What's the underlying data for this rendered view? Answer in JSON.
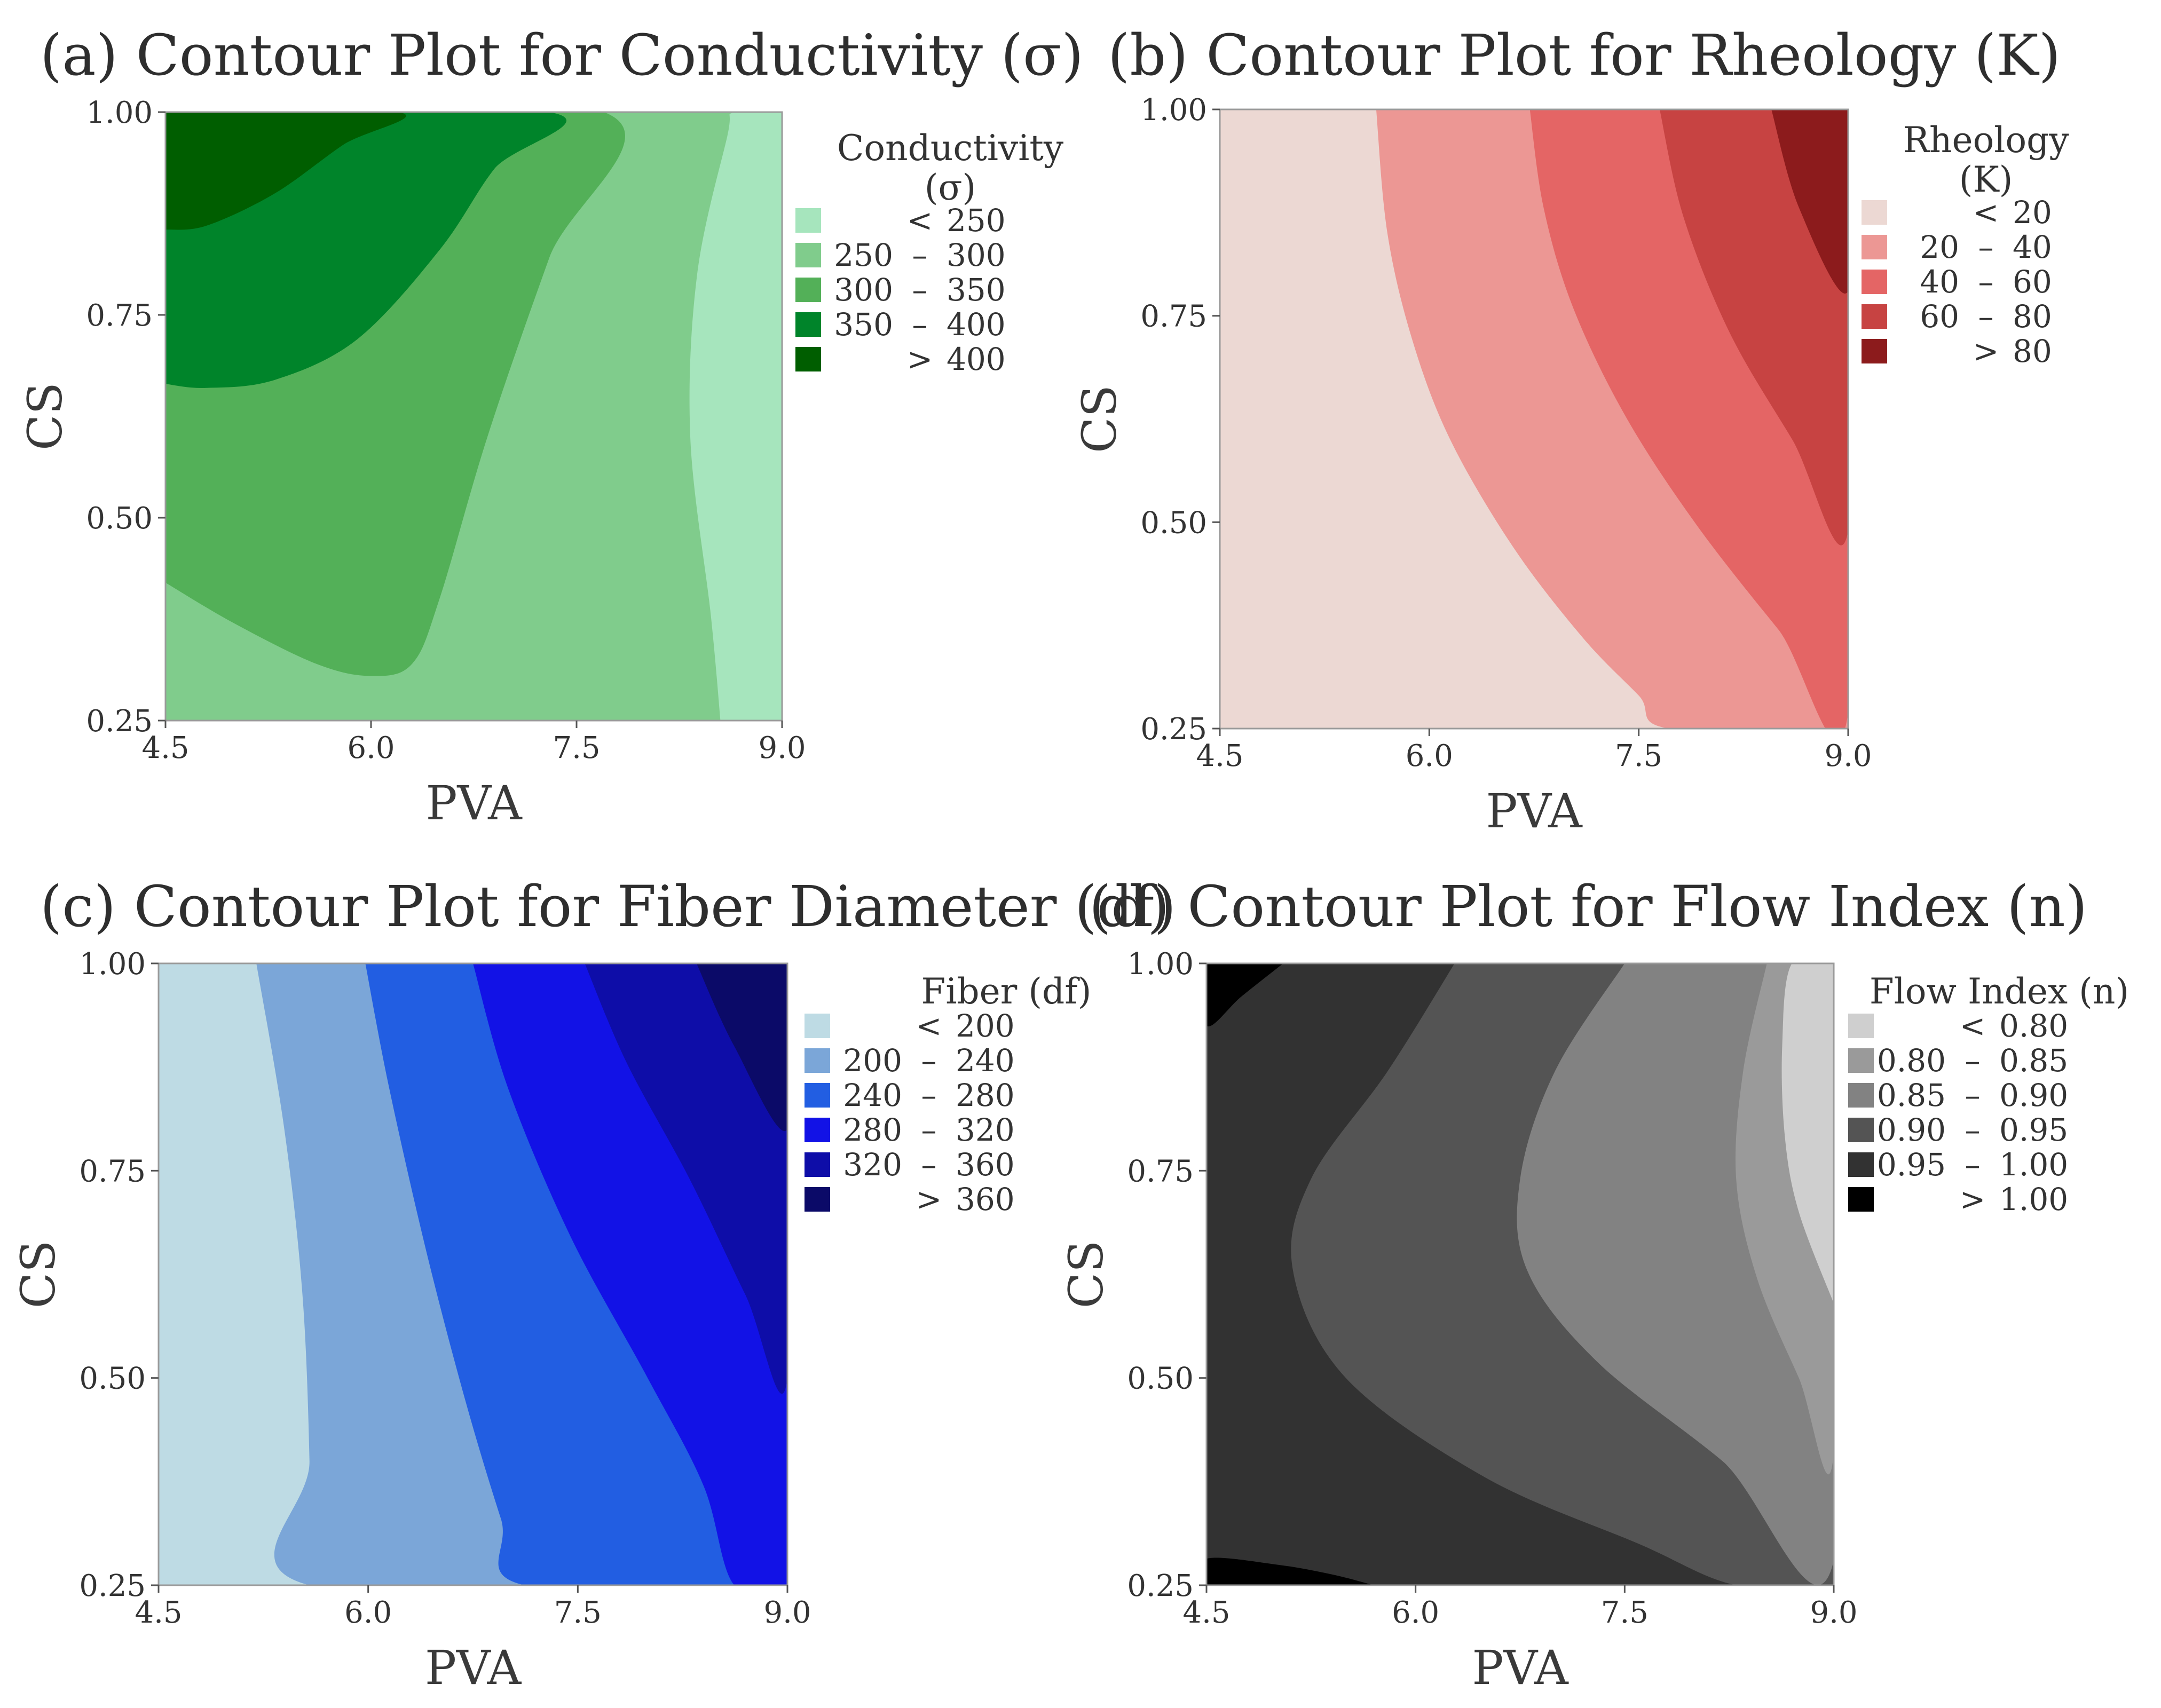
{
  "chart_data": [
    {
      "type": "contour",
      "id": "a",
      "title": "(a) Contour Plot for Conductivity (σ)",
      "xlabel": "PVA",
      "ylabel": "CS",
      "xlim": [
        4.5,
        9.0
      ],
      "ylim": [
        0.25,
        1.0
      ],
      "x_ticks": [
        "4.5",
        "6.0",
        "7.5",
        "9.0"
      ],
      "y_ticks": [
        "0.25",
        "0.50",
        "0.75",
        "1.00"
      ],
      "legend_title": [
        "Conductivity",
        "(σ)"
      ],
      "levels": [
        {
          "low": "",
          "sep": "<",
          "high": "250",
          "color": "#a6e5bd"
        },
        {
          "low": "250",
          "sep": "–",
          "high": "300",
          "color": "#80cc8c"
        },
        {
          "low": "300",
          "sep": "–",
          "high": "350",
          "color": "#53b058"
        },
        {
          "low": "350",
          "sep": "–",
          "high": "400",
          "color": "#00842a"
        },
        {
          "low": "",
          "sep": ">",
          "high": "400",
          "color": "#005e00"
        }
      ],
      "regions": [
        {
          "level": 1,
          "boundary": [
            [
              4.5,
              0.25
            ],
            [
              4.5,
              1.0
            ],
            [
              9.0,
              1.0
            ],
            [
              9.0,
              0.25
            ]
          ]
        },
        {
          "level": 0,
          "boundary": [
            [
              8.55,
              0.25
            ],
            [
              8.48,
              0.38
            ],
            [
              8.33,
              0.6
            ],
            [
              8.38,
              0.8
            ],
            [
              8.6,
              0.97
            ],
            [
              8.65,
              1.0
            ],
            [
              9.0,
              1.0
            ],
            [
              9.0,
              0.25
            ]
          ]
        },
        {
          "level": 2,
          "boundary": [
            [
              4.5,
              0.42
            ],
            [
              5.0,
              0.37
            ],
            [
              5.6,
              0.32
            ],
            [
              6.0,
              0.305
            ],
            [
              6.3,
              0.32
            ],
            [
              6.5,
              0.4
            ],
            [
              6.85,
              0.6
            ],
            [
              7.3,
              0.82
            ],
            [
              7.7,
              1.0
            ],
            [
              4.5,
              1.0
            ]
          ]
        },
        {
          "level": 3,
          "boundary": [
            [
              4.5,
              0.665
            ],
            [
              4.8,
              0.66
            ],
            [
              5.3,
              0.67
            ],
            [
              5.9,
              0.72
            ],
            [
              6.5,
              0.83
            ],
            [
              6.9,
              0.93
            ],
            [
              7.3,
              1.0
            ],
            [
              4.5,
              1.0
            ]
          ]
        },
        {
          "level": 4,
          "boundary": [
            [
              4.5,
              0.855
            ],
            [
              4.8,
              0.86
            ],
            [
              5.3,
              0.9
            ],
            [
              5.8,
              0.96
            ],
            [
              6.2,
              1.0
            ],
            [
              4.5,
              1.0
            ]
          ]
        }
      ]
    },
    {
      "type": "contour",
      "id": "b",
      "title": "(b) Contour Plot for Rheology (K)",
      "xlabel": "PVA",
      "ylabel": "CS",
      "xlim": [
        4.5,
        9.0
      ],
      "ylim": [
        0.25,
        1.0
      ],
      "x_ticks": [
        "4.5",
        "6.0",
        "7.5",
        "9.0"
      ],
      "y_ticks": [
        "0.25",
        "0.50",
        "0.75",
        "1.00"
      ],
      "legend_title": [
        "Rheology",
        "(K)"
      ],
      "levels": [
        {
          "low": "",
          "sep": "<",
          "high": "20",
          "color": "#ecd8d3"
        },
        {
          "low": "20",
          "sep": "–",
          "high": "40",
          "color": "#ec9794"
        },
        {
          "low": "40",
          "sep": "–",
          "high": "60",
          "color": "#e46565"
        },
        {
          "low": "60",
          "sep": "–",
          "high": "80",
          "color": "#c74342"
        },
        {
          "low": "",
          "sep": ">",
          "high": "80",
          "color": "#8c1b1c"
        }
      ],
      "regions": [
        {
          "level": 0,
          "boundary": [
            [
              4.5,
              0.25
            ],
            [
              4.5,
              1.0
            ],
            [
              9.0,
              1.0
            ],
            [
              9.0,
              0.25
            ]
          ]
        },
        {
          "level": 1,
          "boundary": [
            [
              5.62,
              1.0
            ],
            [
              5.7,
              0.85
            ],
            [
              5.88,
              0.72
            ],
            [
              6.15,
              0.6
            ],
            [
              6.6,
              0.47
            ],
            [
              7.1,
              0.36
            ],
            [
              7.5,
              0.29
            ],
            [
              7.72,
              0.25
            ],
            [
              9.0,
              0.25
            ],
            [
              9.0,
              1.0
            ]
          ]
        },
        {
          "level": 2,
          "boundary": [
            [
              6.72,
              1.0
            ],
            [
              6.82,
              0.88
            ],
            [
              7.03,
              0.76
            ],
            [
              7.4,
              0.63
            ],
            [
              7.9,
              0.5
            ],
            [
              8.5,
              0.37
            ],
            [
              9.0,
              0.27
            ],
            [
              9.0,
              1.0
            ]
          ]
        },
        {
          "level": 3,
          "boundary": [
            [
              7.65,
              1.0
            ],
            [
              7.82,
              0.87
            ],
            [
              8.15,
              0.73
            ],
            [
              8.6,
              0.6
            ],
            [
              9.0,
              0.49
            ],
            [
              9.0,
              1.0
            ]
          ]
        },
        {
          "level": 4,
          "boundary": [
            [
              8.45,
              1.0
            ],
            [
              8.65,
              0.88
            ],
            [
              9.0,
              0.78
            ],
            [
              9.0,
              1.0
            ]
          ]
        }
      ]
    },
    {
      "type": "contour",
      "id": "c",
      "title": "(c) Contour Plot for Fiber Diameter (df)",
      "xlabel": "PVA",
      "ylabel": "CS",
      "xlim": [
        4.5,
        9.0
      ],
      "ylim": [
        0.25,
        1.0
      ],
      "x_ticks": [
        "4.5",
        "6.0",
        "7.5",
        "9.0"
      ],
      "y_ticks": [
        "0.25",
        "0.50",
        "0.75",
        "1.00"
      ],
      "legend_title": [
        "Fiber (df)"
      ],
      "levels": [
        {
          "low": "",
          "sep": "<",
          "high": "200",
          "color": "#bedbe4"
        },
        {
          "low": "200",
          "sep": "–",
          "high": "240",
          "color": "#7ba6d8"
        },
        {
          "low": "240",
          "sep": "–",
          "high": "280",
          "color": "#225ee2"
        },
        {
          "low": "280",
          "sep": "–",
          "high": "320",
          "color": "#1212e6"
        },
        {
          "low": "320",
          "sep": "–",
          "high": "360",
          "color": "#0e0da8"
        },
        {
          "low": "",
          "sep": ">",
          "high": "360",
          "color": "#0b0a68"
        }
      ],
      "regions": [
        {
          "level": 0,
          "boundary": [
            [
              4.5,
              0.25
            ],
            [
              4.5,
              1.0
            ],
            [
              9.0,
              1.0
            ],
            [
              9.0,
              0.25
            ]
          ]
        },
        {
          "level": 1,
          "boundary": [
            [
              5.2,
              1.0
            ],
            [
              5.4,
              0.8
            ],
            [
              5.53,
              0.6
            ],
            [
              5.58,
              0.4
            ],
            [
              5.58,
              0.25
            ],
            [
              9.0,
              0.25
            ],
            [
              9.0,
              1.0
            ]
          ]
        },
        {
          "level": 2,
          "boundary": [
            [
              5.98,
              1.0
            ],
            [
              6.15,
              0.85
            ],
            [
              6.42,
              0.65
            ],
            [
              6.7,
              0.47
            ],
            [
              6.95,
              0.33
            ],
            [
              7.12,
              0.25
            ],
            [
              9.0,
              0.25
            ],
            [
              9.0,
              1.0
            ]
          ]
        },
        {
          "level": 3,
          "boundary": [
            [
              6.75,
              1.0
            ],
            [
              7.0,
              0.85
            ],
            [
              7.45,
              0.67
            ],
            [
              8.0,
              0.5
            ],
            [
              8.4,
              0.37
            ],
            [
              8.62,
              0.25
            ],
            [
              9.0,
              0.25
            ],
            [
              9.0,
              1.0
            ]
          ]
        },
        {
          "level": 4,
          "boundary": [
            [
              7.55,
              1.0
            ],
            [
              7.85,
              0.88
            ],
            [
              8.3,
              0.74
            ],
            [
              8.7,
              0.6
            ],
            [
              9.0,
              0.5
            ],
            [
              9.0,
              1.0
            ]
          ]
        },
        {
          "level": 5,
          "boundary": [
            [
              8.35,
              1.0
            ],
            [
              8.62,
              0.9
            ],
            [
              9.0,
              0.8
            ],
            [
              9.0,
              1.0
            ]
          ]
        }
      ]
    },
    {
      "type": "contour",
      "id": "d",
      "title": "(d) Contour Plot for Flow Index (n)",
      "xlabel": "PVA",
      "ylabel": "CS",
      "xlim": [
        4.5,
        9.0
      ],
      "ylim": [
        0.25,
        1.0
      ],
      "x_ticks": [
        "4.5",
        "6.0",
        "7.5",
        "9.0"
      ],
      "y_ticks": [
        "0.25",
        "0.50",
        "0.75",
        "1.00"
      ],
      "legend_title": [
        "Flow Index (n)"
      ],
      "levels": [
        {
          "low": "",
          "sep": "<",
          "high": "0.80",
          "color": "#cfcfcf"
        },
        {
          "low": "0.80",
          "sep": "–",
          "high": "0.85",
          "color": "#9a9a9a"
        },
        {
          "low": "0.85",
          "sep": "–",
          "high": "0.90",
          "color": "#828282"
        },
        {
          "low": "0.90",
          "sep": "–",
          "high": "0.95",
          "color": "#545454"
        },
        {
          "low": "0.95",
          "sep": "–",
          "high": "1.00",
          "color": "#323232"
        },
        {
          "low": "",
          "sep": ">",
          "high": "1.00",
          "color": "#000000"
        }
      ],
      "regions": [
        {
          "level": 4,
          "boundary": [
            [
              4.5,
              0.25
            ],
            [
              4.5,
              1.0
            ],
            [
              9.0,
              1.0
            ],
            [
              9.0,
              0.25
            ]
          ]
        },
        {
          "level": 3,
          "boundary": [
            [
              6.28,
              1.0
            ],
            [
              5.8,
              0.87
            ],
            [
              5.25,
              0.74
            ],
            [
              5.12,
              0.63
            ],
            [
              5.5,
              0.5
            ],
            [
              6.5,
              0.38
            ],
            [
              7.6,
              0.3
            ],
            [
              8.3,
              0.25
            ],
            [
              9.0,
              0.25
            ],
            [
              9.0,
              1.0
            ]
          ]
        },
        {
          "level": 2,
          "boundary": [
            [
              7.5,
              1.0
            ],
            [
              7.0,
              0.87
            ],
            [
              6.75,
              0.74
            ],
            [
              6.8,
              0.63
            ],
            [
              7.3,
              0.52
            ],
            [
              8.2,
              0.4
            ],
            [
              9.0,
              0.28
            ],
            [
              9.0,
              1.0
            ]
          ]
        },
        {
          "level": 1,
          "boundary": [
            [
              8.52,
              1.0
            ],
            [
              8.35,
              0.87
            ],
            [
              8.3,
              0.74
            ],
            [
              8.45,
              0.62
            ],
            [
              8.75,
              0.5
            ],
            [
              9.0,
              0.41
            ],
            [
              9.0,
              1.0
            ]
          ]
        },
        {
          "level": 0,
          "boundary": [
            [
              9.0,
              1.0
            ],
            [
              8.7,
              1.0
            ],
            [
              8.63,
              0.9
            ],
            [
              8.65,
              0.79
            ],
            [
              8.75,
              0.7
            ],
            [
              9.0,
              0.59
            ]
          ]
        },
        {
          "level": 5,
          "boundary": [
            [
              4.5,
              1.0
            ],
            [
              4.5,
              0.925
            ],
            [
              4.75,
              0.96
            ],
            [
              5.05,
              1.0
            ]
          ]
        },
        {
          "level": 5,
          "boundary": [
            [
              4.5,
              0.25
            ],
            [
              4.5,
              0.282
            ],
            [
              5.0,
              0.275
            ],
            [
              5.4,
              0.263
            ],
            [
              5.7,
              0.25
            ]
          ]
        }
      ]
    }
  ]
}
